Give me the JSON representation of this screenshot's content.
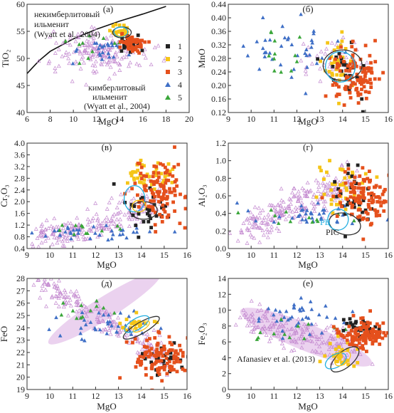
{
  "colors": {
    "s1": "#222222",
    "s2": "#f5c518",
    "s3": "#e5501c",
    "s4": "#3f6fc6",
    "s5": "#3aa63a",
    "cloud": "#c48ad0",
    "cloud_fill": "#e4c3ea",
    "ell_black": "#333333",
    "ell_cyan": "#22aee0",
    "ell_yellow": "#f5c518"
  },
  "chart_data": [
    {
      "id": "a",
      "panel_label": "(а)",
      "type": "scatter",
      "xlabel": "MgO",
      "ylabel": "TiO₂",
      "xlim": [
        6,
        20
      ],
      "ylim": [
        40,
        60
      ],
      "xticks": [
        6,
        8,
        10,
        12,
        14,
        16,
        18,
        20
      ],
      "yticks": [
        40,
        45,
        50,
        55,
        60
      ],
      "legend": {
        "placement": "right",
        "entries": [
          "1",
          "2",
          "3",
          "4",
          "5"
        ]
      },
      "annotations": [
        "некимберлитовый",
        "ильменит",
        "(Wyatt et al., 2004)",
        "кимберлитовый",
        "ильменит",
        "(Wyatt et al., 2004)"
      ],
      "boundary_curve": [
        [
          6,
          47.2
        ],
        [
          7,
          49.5
        ],
        [
          8,
          51.3
        ],
        [
          10,
          53.6
        ],
        [
          12,
          55.4
        ],
        [
          14,
          56.9
        ],
        [
          16,
          58.2
        ],
        [
          18,
          59.6
        ]
      ],
      "clusters": [
        {
          "series": "cloud",
          "cx": 12.3,
          "cy": 51.3,
          "sx": 2.0,
          "sy": 2.0,
          "n": 180
        },
        {
          "series": "1",
          "cx": 15.0,
          "cy": 52.8,
          "sx": 0.5,
          "sy": 0.9,
          "n": 25
        },
        {
          "series": "2",
          "cx": 14.1,
          "cy": 54.8,
          "sx": 0.4,
          "sy": 0.7,
          "n": 20
        },
        {
          "series": "3",
          "cx": 14.9,
          "cy": 52.7,
          "sx": 0.6,
          "sy": 0.8,
          "n": 55
        },
        {
          "series": "4",
          "cx": 12.8,
          "cy": 51.6,
          "sx": 1.5,
          "sy": 0.9,
          "n": 25
        },
        {
          "series": "5",
          "cx": 11.8,
          "cy": 52.8,
          "sx": 1.5,
          "sy": 1.2,
          "n": 10
        }
      ],
      "ellipses": [
        {
          "color": "ell_black",
          "cx": 14.2,
          "cy": 54.8,
          "rx": 0.8,
          "ry": 1.0,
          "rot": 0
        },
        {
          "color": "ell_cyan",
          "cx": 14.1,
          "cy": 54.9,
          "rx": 0.6,
          "ry": 0.9,
          "rot": 0
        },
        {
          "color": "ell_yellow",
          "cx": 14.1,
          "cy": 54.7,
          "rx": 0.45,
          "ry": 0.6,
          "rot": 0
        }
      ]
    },
    {
      "id": "b",
      "panel_label": "(б)",
      "type": "scatter",
      "xlabel": "MgO",
      "ylabel": "MnO",
      "xlim": [
        9,
        16
      ],
      "ylim": [
        0.12,
        0.44
      ],
      "xticks": [
        9,
        10,
        11,
        12,
        13,
        14,
        15,
        16
      ],
      "yticks": [
        0.12,
        0.16,
        0.2,
        0.24,
        0.28,
        0.32,
        0.36,
        0.4,
        0.44
      ],
      "clusters": [
        {
          "series": "cloud",
          "cx": 13.6,
          "cy": 0.27,
          "sx": 0.8,
          "sy": 0.03,
          "n": 40
        },
        {
          "series": "1",
          "cx": 14.3,
          "cy": 0.25,
          "sx": 0.4,
          "sy": 0.04,
          "n": 30
        },
        {
          "series": "2",
          "cx": 13.7,
          "cy": 0.27,
          "sx": 0.3,
          "sy": 0.04,
          "n": 30
        },
        {
          "series": "3",
          "cx": 14.5,
          "cy": 0.23,
          "sx": 0.5,
          "sy": 0.04,
          "n": 110
        },
        {
          "series": "4",
          "cx": 11.6,
          "cy": 0.31,
          "sx": 1.1,
          "sy": 0.04,
          "n": 40
        },
        {
          "series": "5",
          "cx": 11.2,
          "cy": 0.32,
          "sx": 0.6,
          "sy": 0.05,
          "n": 12
        }
      ],
      "ellipses": [
        {
          "color": "ell_black",
          "cx": 14.0,
          "cy": 0.26,
          "rx": 0.85,
          "ry": 0.045,
          "rot": 0
        },
        {
          "color": "ell_cyan",
          "cx": 13.9,
          "cy": 0.255,
          "rx": 0.65,
          "ry": 0.045,
          "rot": 0
        }
      ]
    },
    {
      "id": "v",
      "panel_label": "(в)",
      "type": "scatter",
      "xlabel": "MgO",
      "ylabel": "Cr₂O₃",
      "xlim": [
        9,
        16
      ],
      "ylim": [
        0.4,
        4.0
      ],
      "xticks": [
        9,
        10,
        11,
        12,
        13,
        14,
        15,
        16
      ],
      "yticks": [
        0.4,
        0.8,
        1.2,
        1.6,
        2.0,
        2.4,
        2.8,
        3.2,
        3.6,
        4.0
      ],
      "cloud_trend": {
        "x": [
          9.4,
          15.0
        ],
        "y": [
          0.85,
          2.3
        ],
        "curve": 1.9,
        "spread": 0.25,
        "n": 220
      },
      "clusters": [
        {
          "series": "1",
          "cx": 14.2,
          "cy": 1.8,
          "sx": 0.5,
          "sy": 0.35,
          "n": 30
        },
        {
          "series": "2",
          "cx": 14.3,
          "cy": 2.9,
          "sx": 0.6,
          "sy": 0.25,
          "n": 40
        },
        {
          "series": "3",
          "cx": 14.9,
          "cy": 2.3,
          "sx": 0.6,
          "sy": 0.5,
          "n": 110
        },
        {
          "series": "4",
          "cx": 12.0,
          "cy": 0.95,
          "sx": 1.2,
          "sy": 0.15,
          "n": 35
        },
        {
          "series": "5",
          "cx": 11.5,
          "cy": 1.0,
          "sx": 1.3,
          "sy": 0.2,
          "n": 12
        }
      ],
      "ellipses": [
        {
          "color": "ell_black",
          "cx": 14.1,
          "cy": 1.7,
          "rx": 0.6,
          "ry": 0.3,
          "rot": 0
        },
        {
          "color": "ell_cyan",
          "cx": 13.7,
          "cy": 2.1,
          "rx": 0.45,
          "ry": 0.45,
          "rot": 0
        },
        {
          "color": "ell_yellow",
          "cx": 13.9,
          "cy": 1.85,
          "rx": 0.3,
          "ry": 0.2,
          "rot": 0
        }
      ]
    },
    {
      "id": "g",
      "panel_label": "(г)",
      "type": "scatter",
      "xlabel": "MgO",
      "ylabel": "Al₂O₃",
      "xlim": [
        9,
        16
      ],
      "ylim": [
        0,
        1.2
      ],
      "xticks": [
        9,
        10,
        11,
        12,
        13,
        14,
        15,
        16
      ],
      "yticks": [
        0,
        0.2,
        0.4,
        0.6,
        0.8,
        1.0,
        1.2
      ],
      "annotations": [
        "PB",
        "PIC"
      ],
      "cloud_trend": {
        "x": [
          9.5,
          14.5
        ],
        "y": [
          0.22,
          0.8
        ],
        "curve": 1.1,
        "spread": 0.1,
        "n": 230
      },
      "clusters": [
        {
          "series": "1",
          "cx": 14.6,
          "cy": 0.55,
          "sx": 0.5,
          "sy": 0.15,
          "n": 30
        },
        {
          "series": "2",
          "cx": 14.0,
          "cy": 0.68,
          "sx": 0.5,
          "sy": 0.15,
          "n": 40
        },
        {
          "series": "3",
          "cx": 15.0,
          "cy": 0.55,
          "sx": 0.6,
          "sy": 0.15,
          "n": 110
        },
        {
          "series": "4",
          "cx": 12.3,
          "cy": 0.38,
          "sx": 1.1,
          "sy": 0.08,
          "n": 35
        },
        {
          "series": "5",
          "cx": 12.0,
          "cy": 0.37,
          "sx": 1.1,
          "sy": 0.08,
          "n": 12
        }
      ],
      "ellipses": [
        {
          "color": "ell_black",
          "cx": 14.1,
          "cy": 0.28,
          "rx": 0.7,
          "ry": 0.12,
          "rot": -15
        },
        {
          "color": "ell_cyan",
          "cx": 13.8,
          "cy": 0.33,
          "rx": 0.45,
          "ry": 0.12,
          "rot": -10
        }
      ]
    },
    {
      "id": "d",
      "panel_label": "(д)",
      "type": "scatter",
      "xlabel": "MgO",
      "ylabel": "FeO",
      "xlim": [
        9,
        16
      ],
      "ylim": [
        19,
        28
      ],
      "xticks": [
        9,
        10,
        11,
        12,
        13,
        14,
        15,
        16
      ],
      "yticks": [
        19,
        20,
        21,
        22,
        23,
        24,
        25,
        26,
        27,
        28
      ],
      "cloud_ellipse": {
        "cx": 12.4,
        "cy": 25.6,
        "rx": 2.9,
        "ry": 0.9,
        "rot": 32
      },
      "cloud_trend": {
        "x": [
          9.5,
          15.0
        ],
        "y": [
          27.7,
          21.8
        ],
        "curve": 1.0,
        "spread": 0.5,
        "n": 200
      },
      "clusters": [
        {
          "series": "1",
          "cx": 14.9,
          "cy": 21.6,
          "sx": 0.4,
          "sy": 0.7,
          "n": 25
        },
        {
          "series": "2",
          "cx": 13.7,
          "cy": 24.2,
          "sx": 0.4,
          "sy": 0.5,
          "n": 20
        },
        {
          "series": "3",
          "cx": 14.8,
          "cy": 21.7,
          "sx": 0.6,
          "sy": 1.0,
          "n": 110
        },
        {
          "series": "4",
          "cx": 12.3,
          "cy": 24.0,
          "sx": 1.2,
          "sy": 0.7,
          "n": 35
        },
        {
          "series": "5",
          "cx": 11.5,
          "cy": 25.6,
          "sx": 0.9,
          "sy": 0.7,
          "n": 12
        }
      ],
      "ellipses": [
        {
          "color": "ell_black",
          "cx": 14.0,
          "cy": 24.0,
          "rx": 0.9,
          "ry": 0.45,
          "rot": 30
        },
        {
          "color": "ell_cyan",
          "cx": 13.8,
          "cy": 24.3,
          "rx": 0.6,
          "ry": 0.45,
          "rot": 30
        },
        {
          "color": "ell_yellow",
          "cx": 14.0,
          "cy": 24.1,
          "rx": 0.4,
          "ry": 0.3,
          "rot": 30
        }
      ]
    },
    {
      "id": "e",
      "panel_label": "(е)",
      "type": "scatter",
      "xlabel": "MgO",
      "ylabel": "Fe₂O₃",
      "xlim": [
        9,
        16
      ],
      "ylim": [
        0,
        14
      ],
      "xticks": [
        9,
        10,
        11,
        12,
        13,
        14,
        15,
        16
      ],
      "yticks": [
        0,
        2,
        4,
        6,
        8,
        10,
        12,
        14
      ],
      "annotations": [
        "Afanasiev et al. (2013)"
      ],
      "cloud_ellipse": {
        "cx": 12.4,
        "cy": 6.6,
        "rx": 3.1,
        "ry": 1.7,
        "rot": -22
      },
      "cloud_trend": {
        "x": [
          9.7,
          14.8
        ],
        "y": [
          8.8,
          5.0
        ],
        "curve": 1.0,
        "spread": 1.1,
        "n": 200
      },
      "clusters": [
        {
          "series": "1",
          "cx": 14.7,
          "cy": 7.8,
          "sx": 0.5,
          "sy": 0.6,
          "n": 30
        },
        {
          "series": "2",
          "cx": 14.0,
          "cy": 4.3,
          "sx": 0.4,
          "sy": 0.8,
          "n": 30
        },
        {
          "series": "3",
          "cx": 15.0,
          "cy": 7.0,
          "sx": 0.5,
          "sy": 0.9,
          "n": 110
        },
        {
          "series": "4",
          "cx": 12.2,
          "cy": 9.2,
          "sx": 1.2,
          "sy": 1.1,
          "n": 40
        },
        {
          "series": "5",
          "cx": 11.8,
          "cy": 7.5,
          "sx": 1.0,
          "sy": 0.8,
          "n": 12
        }
      ],
      "ellipses": [
        {
          "color": "ell_black",
          "cx": 14.1,
          "cy": 3.8,
          "rx": 0.75,
          "ry": 1.0,
          "rot": 40
        },
        {
          "color": "ell_cyan",
          "cx": 13.7,
          "cy": 3.6,
          "rx": 0.5,
          "ry": 0.8,
          "rot": 30
        },
        {
          "color": "ell_yellow",
          "cx": 14.0,
          "cy": 3.9,
          "rx": 0.4,
          "ry": 0.7,
          "rot": 40
        }
      ]
    }
  ]
}
